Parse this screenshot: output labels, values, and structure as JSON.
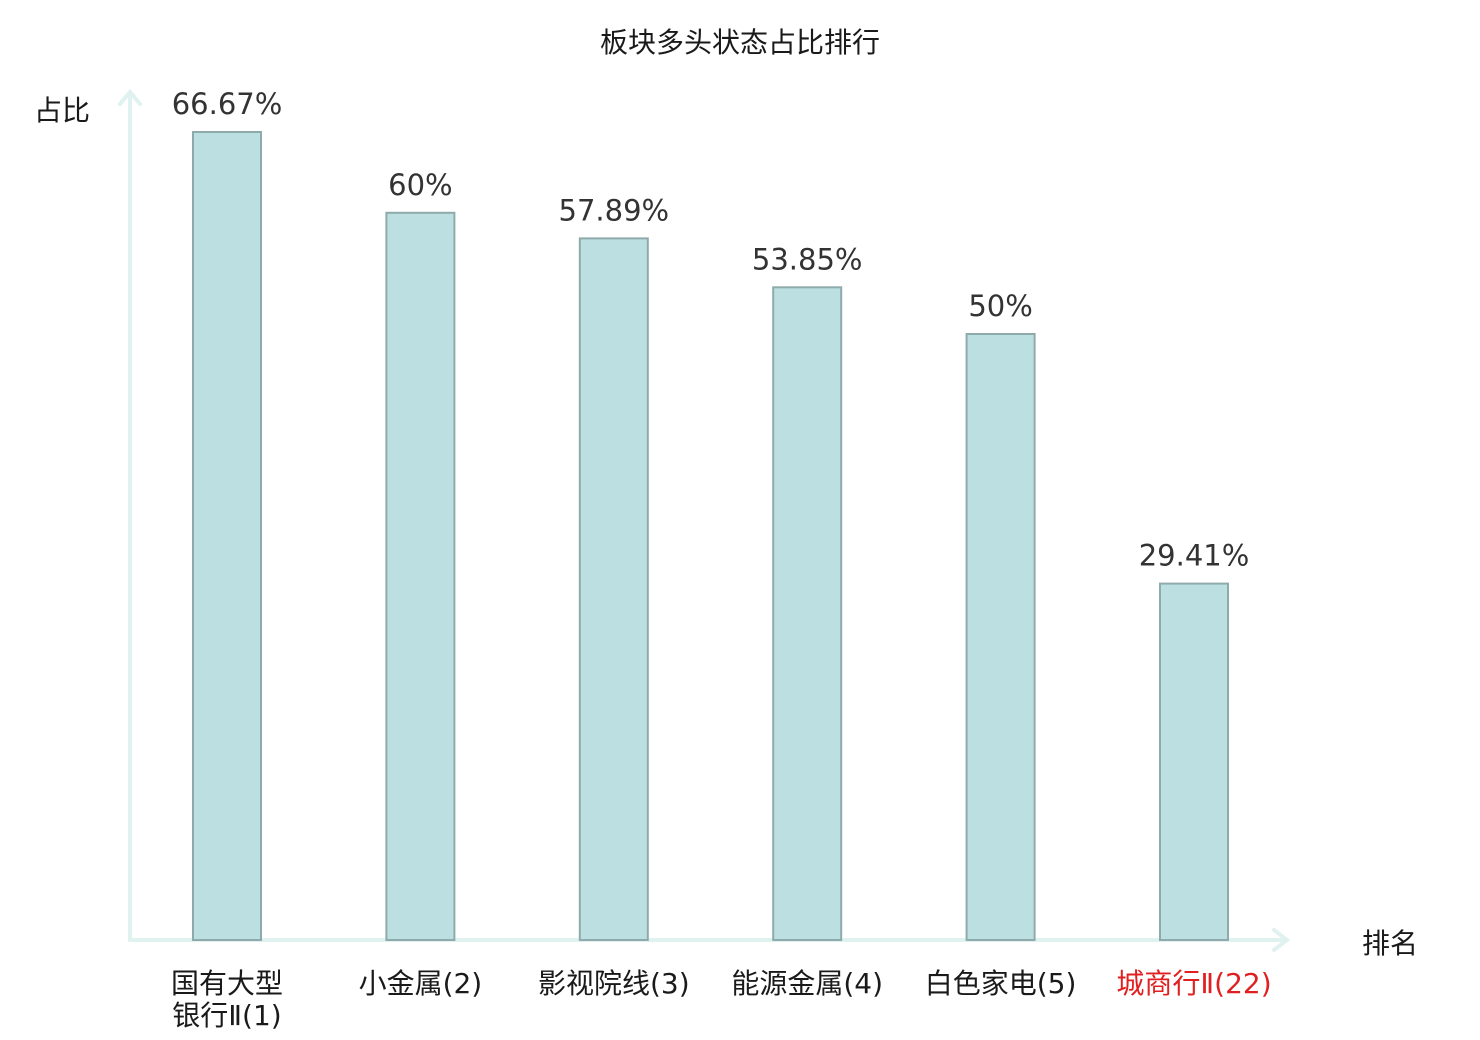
{
  "chart_data": {
    "type": "bar",
    "title": "板块多头状态占比排行",
    "xlabel": "排名",
    "ylabel": "占比",
    "ylim": [
      0,
      70
    ],
    "categories": [
      [
        "国有大型",
        "银行Ⅱ(1)"
      ],
      [
        "小金属(2)"
      ],
      [
        "影视院线(3)"
      ],
      [
        "能源金属(4)"
      ],
      [
        "白色家电(5)"
      ],
      [
        "城商行Ⅱ(22)"
      ]
    ],
    "values": [
      66.67,
      60,
      57.89,
      53.85,
      50,
      29.41
    ],
    "value_labels": [
      "66.67%",
      "60%",
      "57.89%",
      "53.85%",
      "50%",
      "29.41%"
    ],
    "highlight": [
      false,
      false,
      false,
      false,
      false,
      true
    ],
    "grid": false,
    "colors": {
      "bar_fill": "#bce0e2",
      "bar_stroke": "#8faaaa",
      "axis": "#dff2ef",
      "highlight_text": "#e02020"
    }
  }
}
